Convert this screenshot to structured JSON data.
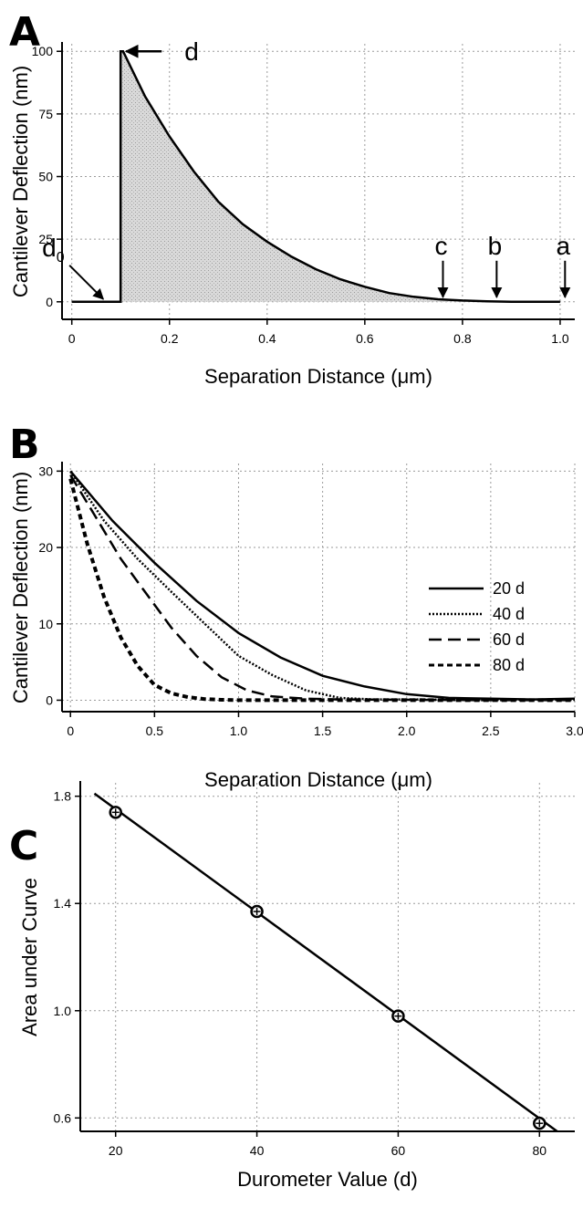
{
  "chart_data": [
    {
      "panel": "A",
      "type": "area",
      "xlabel": "Separation Distance (μm)",
      "ylabel": "Cantilever Deflection (nm)",
      "xlim": [
        -0.02,
        1.03
      ],
      "ylim": [
        -7,
        103
      ],
      "xticks": [
        0,
        0.2,
        0.4,
        0.6,
        0.8,
        1.0
      ],
      "xtick_labels": [
        "0",
        "0.2",
        "0.4",
        "0.6",
        "0.8",
        "1.0"
      ],
      "yticks": [
        0,
        25,
        50,
        75,
        100
      ],
      "ytick_labels": [
        "0",
        "25",
        "50",
        "75",
        "100"
      ],
      "grid": true,
      "series": [
        {
          "x": [
            0.0,
            0.1,
            0.1,
            0.105,
            0.15,
            0.2,
            0.25,
            0.3,
            0.35,
            0.4,
            0.45,
            0.5,
            0.55,
            0.6,
            0.65,
            0.7,
            0.75,
            0.8,
            0.85,
            0.9,
            0.95,
            1.0
          ],
          "y": [
            0,
            0,
            100,
            100,
            82,
            66,
            52,
            40,
            31,
            24,
            18,
            13,
            9,
            6,
            3.5,
            2,
            1,
            0.5,
            0.2,
            0,
            0,
            0
          ],
          "fill": "shaded-under-curve"
        }
      ],
      "annotations": [
        {
          "text": "d",
          "x": 0.1,
          "y": 100
        },
        {
          "text": "d",
          "subscript": "0",
          "x": 0.07,
          "y": 0
        },
        {
          "text": "c",
          "x": 0.76,
          "y": 0
        },
        {
          "text": "b",
          "x": 0.87,
          "y": 0
        },
        {
          "text": "a",
          "x": 1.01,
          "y": 0
        }
      ]
    },
    {
      "panel": "B",
      "type": "line",
      "xlabel": "Separation Distance (μm)",
      "ylabel": "Cantilever Deflection (nm)",
      "xlim": [
        -0.05,
        3.0
      ],
      "ylim": [
        -1.5,
        31
      ],
      "xticks": [
        0,
        0.5,
        1.0,
        1.5,
        2.0,
        2.5,
        3.0
      ],
      "xtick_labels": [
        "0",
        "0.5",
        "1.0",
        "1.5",
        "2.0",
        "2.5",
        "3.0"
      ],
      "yticks": [
        0,
        10,
        20,
        30
      ],
      "ytick_labels": [
        "0",
        "10",
        "20",
        "30"
      ],
      "grid": true,
      "legend": "right",
      "series": [
        {
          "name": "20 d",
          "style": "solid",
          "x": [
            0,
            0.25,
            0.5,
            0.75,
            1.0,
            1.25,
            1.5,
            1.75,
            2.0,
            2.25,
            2.5,
            2.75,
            3.0
          ],
          "y": [
            30,
            23.5,
            18,
            13,
            8.8,
            5.6,
            3.2,
            1.8,
            0.8,
            0.3,
            0.2,
            0.1,
            0.2
          ]
        },
        {
          "name": "40 d",
          "style": "dotted",
          "x": [
            0,
            0.2,
            0.4,
            0.6,
            0.8,
            1.0,
            1.2,
            1.4,
            1.6,
            1.8,
            2.0,
            2.5,
            3.0
          ],
          "y": [
            30,
            23.5,
            18.5,
            14.2,
            10.0,
            5.8,
            3.3,
            1.3,
            0.3,
            0.1,
            0.1,
            0.05,
            0.05
          ]
        },
        {
          "name": "60 d",
          "style": "long-dash",
          "x": [
            0,
            0.15,
            0.3,
            0.45,
            0.6,
            0.75,
            0.9,
            1.05,
            1.2,
            1.4,
            1.6,
            2.0,
            2.5,
            3.0
          ],
          "y": [
            29.5,
            24,
            18.5,
            14.0,
            9.5,
            5.8,
            3.0,
            1.3,
            0.5,
            0.2,
            0.1,
            0.05,
            0,
            0
          ]
        },
        {
          "name": "80 d",
          "style": "short-dash",
          "x": [
            0,
            0.1,
            0.2,
            0.3,
            0.4,
            0.5,
            0.6,
            0.7,
            0.8,
            0.9,
            1.0,
            1.5,
            2.0,
            2.5,
            3.0
          ],
          "y": [
            29,
            20.5,
            13.5,
            8.2,
            4.5,
            2.0,
            0.9,
            0.4,
            0.15,
            0.05,
            0,
            0,
            0,
            0,
            0
          ]
        }
      ]
    },
    {
      "panel": "C",
      "type": "scatter",
      "xlabel": "Durometer Value (d)",
      "ylabel": "Area under Curve",
      "xlim": [
        15,
        85
      ],
      "ylim": [
        0.55,
        1.85
      ],
      "xticks": [
        20,
        40,
        60,
        80
      ],
      "xtick_labels": [
        "20",
        "40",
        "60",
        "80"
      ],
      "yticks": [
        0.6,
        1.0,
        1.4,
        1.8
      ],
      "ytick_labels": [
        "0.6",
        "1.0",
        "1.4",
        "1.8"
      ],
      "grid": true,
      "series": [
        {
          "x": [
            20,
            40,
            60,
            80
          ],
          "y": [
            1.74,
            1.37,
            0.98,
            0.58
          ],
          "marker": "circle-plus"
        }
      ],
      "fit_line": {
        "x": [
          17,
          82.5
        ],
        "y": [
          1.81,
          0.55
        ]
      }
    }
  ],
  "labels": {
    "panel_a": "A",
    "panel_b": "B",
    "panel_c": "C"
  }
}
